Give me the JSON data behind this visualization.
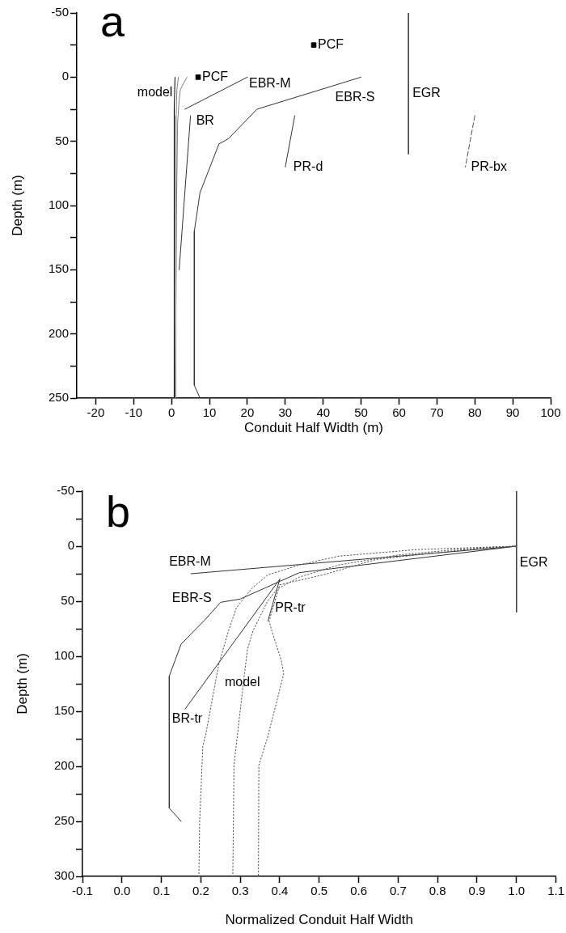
{
  "chart_data": [
    {
      "type": "line",
      "title": "a",
      "xlabel": "Conduit Half Width (m)",
      "ylabel": "Depth (m)",
      "xlim": [
        -25,
        100
      ],
      "xticks": [
        -20,
        -10,
        0,
        10,
        20,
        30,
        40,
        50,
        60,
        70,
        80,
        90,
        100
      ],
      "ylim": [
        250,
        -50
      ],
      "yticks": [
        -50,
        {
          "value": -25,
          "label": null
        },
        0,
        {
          "value": 25,
          "label": null
        },
        50,
        {
          "value": 75,
          "label": null
        },
        100,
        {
          "value": 125,
          "label": null
        },
        150,
        {
          "value": 175,
          "label": null
        },
        200,
        {
          "value": 225,
          "label": null
        },
        250
      ],
      "line_style": "solid",
      "marker": "none",
      "series": [
        {
          "name": "model",
          "color": "#000000",
          "x": [
            0.9,
            0.7,
            0.7
          ],
          "values": [
            0,
            25,
            250
          ]
        },
        {
          "color": "#808080",
          "x": [
            1.8,
            1.4,
            1.2,
            1.1,
            1.1
          ],
          "values": [
            0,
            10,
            30,
            100,
            250
          ]
        },
        {
          "color": "#808080",
          "x": [
            4.1,
            3.1,
            2.3,
            2.0,
            1.6,
            1.3,
            1.0
          ],
          "values": [
            0,
            5,
            10,
            18,
            35,
            100,
            250
          ]
        },
        {
          "name": "EBR-M",
          "color": "#333333",
          "x": [
            20,
            3.5
          ],
          "values": [
            0,
            25
          ]
        },
        {
          "name": "EBR-S",
          "color": "#333333",
          "x": [
            50,
            22.5,
            15,
            12.5,
            7.5,
            6,
            6,
            7.5
          ],
          "values": [
            0,
            25,
            48,
            52,
            90,
            120,
            240,
            250
          ]
        },
        {
          "name": "BR",
          "color": "#333333",
          "x": [
            5,
            2
          ],
          "values": [
            30,
            150
          ]
        },
        {
          "name": "PR-d",
          "color": "#333333",
          "x": [
            32.5,
            30
          ],
          "values": [
            30,
            70
          ]
        },
        {
          "name": "PR-bx",
          "color": "#555555",
          "line_style": "dashed",
          "x": [
            80,
            77.5
          ],
          "values": [
            30,
            70
          ]
        },
        {
          "name": "EGR",
          "color": "#444444",
          "x": [
            62.5,
            62.5
          ],
          "values": [
            -50,
            60
          ]
        },
        {
          "name": "PCF",
          "type": "scatter",
          "marker": "square",
          "color": "#000000",
          "x": [
            7,
            37.5
          ],
          "values": [
            0,
            -25
          ]
        }
      ]
    },
    {
      "type": "line",
      "title": "b",
      "xlabel": "Normalized Conduit Half Width",
      "ylabel": "Depth (m)",
      "xlim": [
        -0.1,
        1.1
      ],
      "xticks": [
        -0.1,
        {
          "value": 0,
          "label": "0.0"
        },
        0.1,
        0.2,
        0.3,
        0.4,
        0.5,
        0.6,
        0.7,
        0.8,
        0.9,
        {
          "value": 1,
          "label": "1.0"
        },
        1.1
      ],
      "ylim": [
        300,
        -50
      ],
      "yticks": [
        -50,
        {
          "value": -25,
          "label": null
        },
        0,
        {
          "value": 25,
          "label": null
        },
        50,
        {
          "value": 75,
          "label": null
        },
        100,
        {
          "value": 125,
          "label": null
        },
        150,
        {
          "value": 175,
          "label": null
        },
        200,
        {
          "value": 225,
          "label": null
        },
        250,
        {
          "value": 275,
          "label": null
        },
        300
      ],
      "line_style": "solid",
      "marker": "none",
      "series": [
        {
          "color": "#555555",
          "line_style": "dotted",
          "x": [
            1,
            0.75,
            0.55,
            0.45,
            0.37,
            0.33,
            0.29,
            0.27,
            0.245,
            0.213,
            0.205,
            0.197,
            0.195
          ],
          "values": [
            0,
            3,
            9,
            17,
            26,
            38,
            56,
            77,
            108,
            170,
            182,
            250,
            300
          ]
        },
        {
          "name": "model",
          "color": "#555555",
          "line_style": "dotted",
          "x": [
            1,
            0.85,
            0.7,
            0.55,
            0.45,
            0.393,
            0.369,
            0.332,
            0.318,
            0.305,
            0.284,
            0.281
          ],
          "values": [
            0,
            3,
            8,
            17,
            28,
            39,
            50,
            77,
            94,
            133,
            199,
            300
          ]
        },
        {
          "color": "#555555",
          "line_style": "dotted",
          "x": [
            1,
            0.92,
            0.645,
            0.51,
            0.4,
            0.373,
            0.38,
            0.404,
            0.41,
            0.369,
            0.347,
            0.346
          ],
          "values": [
            0,
            1.2,
            12,
            26,
            35,
            68,
            77,
            104,
            116,
            174,
            199,
            300
          ]
        },
        {
          "name": "EBR-M",
          "color": "#333333",
          "x": [
            1,
            0.175
          ],
          "values": [
            0,
            25
          ]
        },
        {
          "name": "EBR-S",
          "color": "#333333",
          "x": [
            1,
            0.45,
            0.3,
            0.25,
            0.21,
            0.15,
            0.12,
            0.12,
            0.15
          ],
          "values": [
            0,
            24,
            48,
            51,
            67,
            89,
            118,
            238,
            250
          ]
        },
        {
          "name": "PR-tr",
          "color": "#333333",
          "x": [
            0.4,
            0.37
          ],
          "values": [
            30,
            68
          ]
        },
        {
          "name": "BR-tr",
          "color": "#333333",
          "x": [
            0.4,
            0.16
          ],
          "values": [
            30,
            148
          ]
        },
        {
          "name": "EGR",
          "color": "#444444",
          "x": [
            1,
            1
          ],
          "values": [
            -50,
            60
          ]
        }
      ]
    }
  ]
}
